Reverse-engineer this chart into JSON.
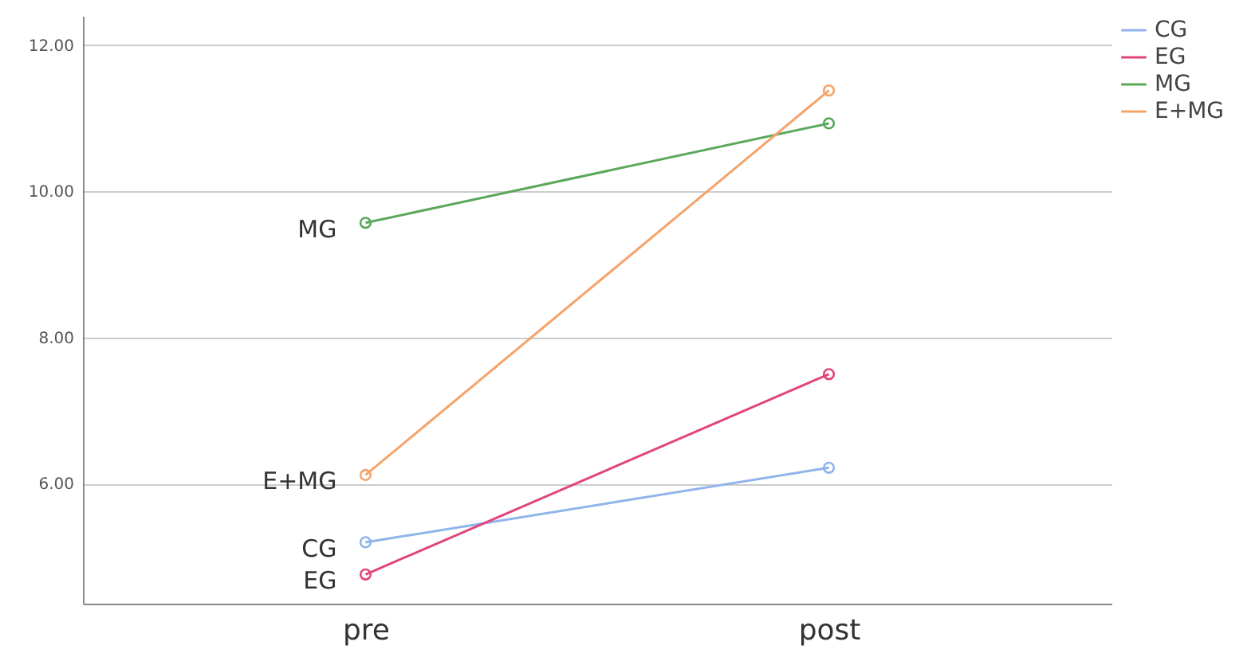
{
  "chart_data": {
    "type": "line",
    "categories": [
      "pre",
      "post"
    ],
    "series": [
      {
        "name": "CG",
        "color": "#8fb4ea",
        "values": [
          5.2,
          6.22
        ]
      },
      {
        "name": "EG",
        "color": "#e0457b",
        "values": [
          4.76,
          7.5
        ]
      },
      {
        "name": "MG",
        "color": "#5aa85a",
        "values": [
          9.57,
          10.93
        ]
      },
      {
        "name": "E+MG",
        "color": "#f5a36b",
        "values": [
          6.12,
          11.38
        ]
      }
    ],
    "ylim": [
      4.36,
      12.4
    ],
    "yticks": [
      {
        "value": 6,
        "label": "6.00"
      },
      {
        "value": 8,
        "label": "8.00"
      },
      {
        "value": 10,
        "label": "10.00"
      },
      {
        "value": 12,
        "label": "12.00"
      }
    ],
    "grid": "y",
    "legend": "right",
    "marker": "circle",
    "line_style": "solid"
  }
}
